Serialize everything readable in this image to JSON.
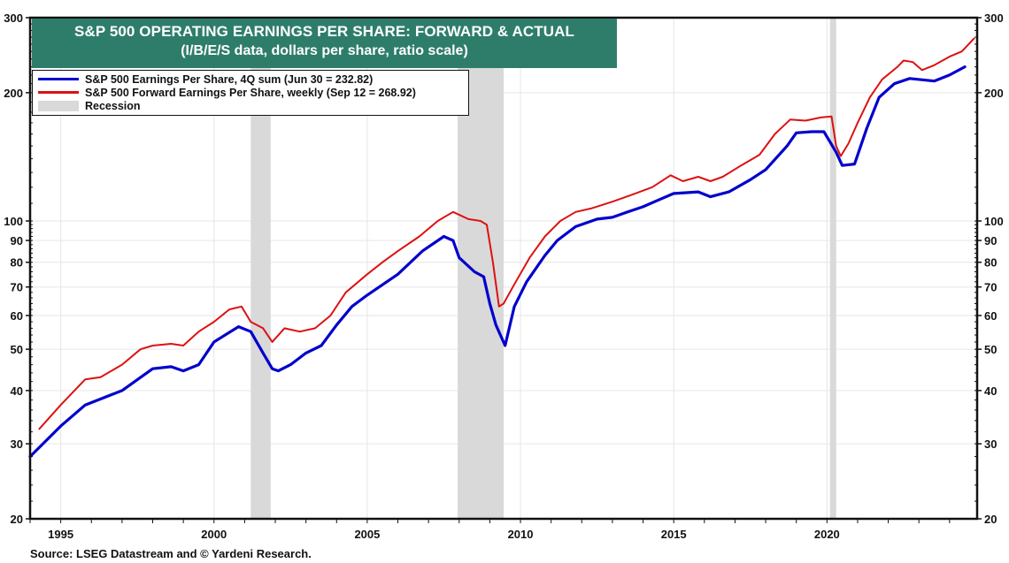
{
  "title": {
    "line1": "S&P 500 OPERATING EARNINGS PER SHARE: FORWARD & ACTUAL",
    "line2": "(I/B/E/S data, dollars per share, ratio scale)",
    "background": "#2e7d6b"
  },
  "legend": {
    "items": [
      {
        "label": "S&P 500 Earnings Per Share, 4Q sum (Jun 30 = 232.82)",
        "color": "#0000cc",
        "type": "line"
      },
      {
        "label": "S&P 500 Forward Earnings Per Share, weekly (Sep 12 = 268.92)",
        "color": "#dd1111",
        "type": "line"
      },
      {
        "label": "Recession",
        "color": "#d9d9d9",
        "type": "box"
      }
    ]
  },
  "source": "Source: LSEG Datastream and © Yardeni Research.",
  "chart_data": {
    "type": "line",
    "title": "S&P 500 OPERATING EARNINGS PER SHARE: FORWARD & ACTUAL",
    "subtitle": "(I/B/E/S data, dollars per share, ratio scale)",
    "xlabel": "",
    "ylabel": "",
    "yscale": "log",
    "ylim": [
      20,
      300
    ],
    "xlim": [
      1994.0,
      2024.9
    ],
    "yticks": [
      20,
      30,
      40,
      50,
      60,
      70,
      80,
      90,
      100,
      200,
      300
    ],
    "xticks": [
      1995,
      2000,
      2005,
      2010,
      2015,
      2020
    ],
    "grid": true,
    "legend_position": "top-left",
    "recessions": [
      [
        2001.2,
        2001.85
      ],
      [
        2007.95,
        2009.45
      ],
      [
        2020.1,
        2020.3
      ]
    ],
    "series": [
      {
        "name": "S&P 500 Earnings Per Share, 4Q sum (Jun 30 = 232.82)",
        "color": "#0000cc",
        "x": [
          1994.0,
          1995.0,
          1995.8,
          1997.0,
          1998.0,
          1998.6,
          1999.0,
          1999.5,
          2000.0,
          2000.8,
          2001.2,
          2001.6,
          2001.9,
          2002.1,
          2002.5,
          2003.0,
          2003.5,
          2004.0,
          2004.5,
          2005.0,
          2006.0,
          2006.8,
          2007.5,
          2007.8,
          2008.0,
          2008.5,
          2008.8,
          2009.0,
          2009.2,
          2009.5,
          2009.8,
          2010.2,
          2010.8,
          2011.2,
          2011.8,
          2012.5,
          2013.0,
          2013.5,
          2014.0,
          2014.5,
          2015.0,
          2015.8,
          2016.2,
          2016.8,
          2017.5,
          2018.0,
          2018.7,
          2019.0,
          2019.5,
          2019.9,
          2020.3,
          2020.5,
          2020.9,
          2021.3,
          2021.7,
          2022.2,
          2022.7,
          2023.5,
          2024.0,
          2024.5
        ],
        "values": [
          28,
          33,
          37,
          40,
          45,
          45.5,
          44.5,
          46,
          52,
          56.5,
          55,
          49,
          45,
          44.5,
          46,
          49,
          51,
          57,
          63,
          67,
          75,
          85,
          92,
          90,
          82,
          76,
          74,
          64,
          57,
          51,
          63,
          72,
          83,
          90,
          97,
          101,
          102,
          105,
          108,
          112,
          116,
          117,
          114,
          117,
          125,
          132,
          150,
          161,
          162,
          162,
          145,
          135,
          136,
          165,
          195,
          210,
          216,
          213,
          220,
          230
        ]
      },
      {
        "name": "S&P 500 Forward Earnings Per Share, weekly (Sep 12 = 268.92)",
        "color": "#dd1111",
        "x": [
          1994.3,
          1995.0,
          1995.8,
          1996.3,
          1997.0,
          1997.6,
          1998.0,
          1998.6,
          1999.0,
          1999.5,
          2000.0,
          2000.5,
          2000.9,
          2001.2,
          2001.6,
          2001.9,
          2002.3,
          2002.8,
          2003.3,
          2003.8,
          2004.3,
          2005.0,
          2005.5,
          2006.0,
          2006.7,
          2007.3,
          2007.8,
          2008.3,
          2008.7,
          2008.9,
          2009.1,
          2009.3,
          2009.45,
          2009.8,
          2010.3,
          2010.8,
          2011.3,
          2011.8,
          2012.3,
          2013.0,
          2013.6,
          2014.3,
          2014.9,
          2015.3,
          2015.8,
          2016.2,
          2016.6,
          2017.2,
          2017.8,
          2018.3,
          2018.8,
          2019.3,
          2019.8,
          2020.15,
          2020.3,
          2020.45,
          2020.7,
          2021.0,
          2021.4,
          2021.8,
          2022.3,
          2022.5,
          2022.8,
          2023.1,
          2023.5,
          2024.0,
          2024.4,
          2024.8
        ],
        "values": [
          32.5,
          37,
          42.5,
          43,
          46,
          50,
          51,
          51.5,
          51,
          55,
          58,
          62,
          63,
          58,
          56,
          52,
          56,
          55,
          56,
          60,
          68,
          75,
          80,
          85,
          92,
          100,
          105,
          101,
          100,
          98,
          80,
          63,
          64,
          71,
          82,
          92,
          100,
          105,
          107,
          111,
          115,
          120,
          128,
          124,
          127,
          124,
          127,
          135,
          143,
          160,
          173,
          172,
          175,
          176,
          150,
          142,
          152,
          170,
          195,
          215,
          230,
          238,
          236,
          226,
          232,
          243,
          250,
          268
        ]
      }
    ]
  }
}
